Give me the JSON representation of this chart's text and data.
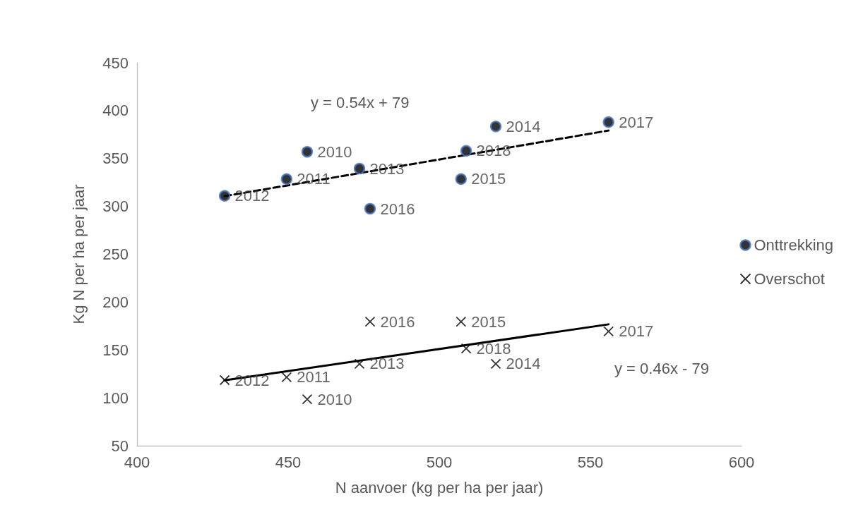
{
  "chart_data": {
    "type": "scatter",
    "xlabel": "N aanvoer (kg per ha per jaar)",
    "ylabel": "Kg N per ha per jaar",
    "xlim": [
      400,
      600
    ],
    "xticks": [
      400,
      450,
      500,
      550,
      600
    ],
    "ylim": [
      50,
      450
    ],
    "yticks": [
      50,
      100,
      150,
      200,
      250,
      300,
      350,
      400,
      450
    ],
    "grid": false,
    "legend": "right",
    "series": [
      {
        "name": "Onttrekking",
        "marker": "circle",
        "color": "#000000",
        "x": [
          456.3,
          449.5,
          429,
          473.6,
          518.7,
          507.2,
          477.1,
          556,
          508.9
        ],
        "values": [
          357,
          328.5,
          311,
          339.5,
          383.5,
          328.5,
          297.5,
          388,
          358
        ]
      },
      {
        "name": "Overschot",
        "marker": "cross",
        "color": "#000000",
        "x": [
          456.3,
          449.5,
          429,
          473.6,
          518.7,
          507.2,
          477.1,
          556,
          508.9
        ],
        "values": [
          98.5,
          121.5,
          118.5,
          135.5,
          135.5,
          179.5,
          179.5,
          169.5,
          151.5
        ]
      },
      {
        "type": "line",
        "marker": "none",
        "line_style": "dashed",
        "color": "#000000",
        "x": [
          429,
          556
        ],
        "values": [
          310.7,
          379.2
        ]
      },
      {
        "type": "line",
        "marker": "none",
        "line_style": "solid",
        "color": "#000000",
        "x": [
          429,
          556
        ],
        "values": [
          118.3,
          176.8
        ]
      }
    ],
    "annotations": [
      "y = 0.54x + 79",
      "y = 0.46x - 79",
      {
        "text": "2010",
        "x": 456.3,
        "y": 357
      },
      {
        "text": "2011",
        "x": 449.5,
        "y": 328.5
      },
      {
        "text": "2012",
        "x": 429,
        "y": 311
      },
      {
        "text": "2013",
        "x": 473.6,
        "y": 339.5
      },
      {
        "text": "2014",
        "x": 518.7,
        "y": 383.5
      },
      {
        "text": "2015",
        "x": 507.2,
        "y": 328.5
      },
      {
        "text": "2016",
        "x": 477.1,
        "y": 297.5
      },
      {
        "text": "2017",
        "x": 556,
        "y": 388
      },
      {
        "text": "2018",
        "x": 508.9,
        "y": 358
      },
      {
        "text": "2010",
        "x": 456.3,
        "y": 98.5
      },
      {
        "text": "2011",
        "x": 449.5,
        "y": 121.5
      },
      {
        "text": "2012",
        "x": 429,
        "y": 118.5
      },
      {
        "text": "2013",
        "x": 473.6,
        "y": 135.5
      },
      {
        "text": "2014",
        "x": 518.7,
        "y": 135.5
      },
      {
        "text": "2015",
        "x": 507.2,
        "y": 179.5
      },
      {
        "text": "2016",
        "x": 477.1,
        "y": 179.5
      },
      {
        "text": "2017",
        "x": 556,
        "y": 169.5
      },
      {
        "text": "2018",
        "x": 508.9,
        "y": 151.5
      }
    ]
  }
}
